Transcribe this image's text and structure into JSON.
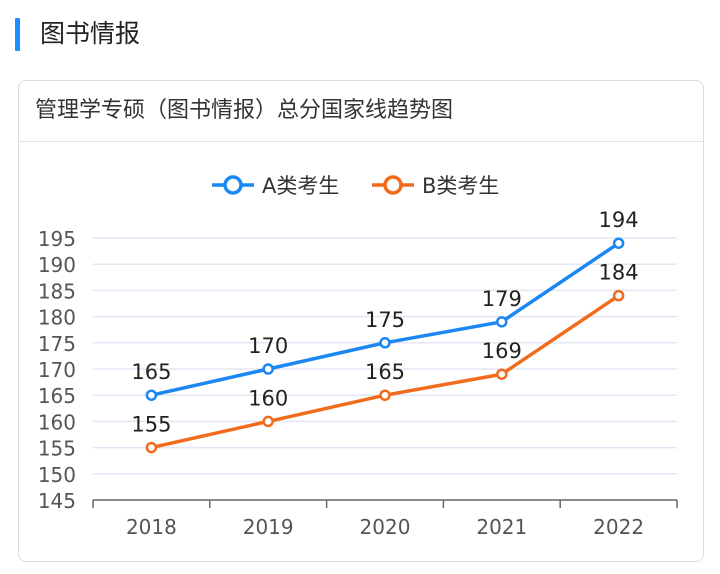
{
  "section": {
    "title": "图书情报"
  },
  "card": {
    "title": "管理学专硕（图书情报）总分国家线趋势图"
  },
  "colors": {
    "accent": "#1890ff",
    "seriesA": "#1a87f3",
    "seriesB": "#f26b1d"
  },
  "chart_data": {
    "type": "line",
    "title": "",
    "xlabel": "",
    "ylabel": "",
    "categories": [
      "2018",
      "2019",
      "2020",
      "2021",
      "2022"
    ],
    "series": [
      {
        "name": "A类考生",
        "values": [
          165,
          170,
          175,
          179,
          194
        ],
        "color": "#1a87f3"
      },
      {
        "name": "B类考生",
        "values": [
          155,
          160,
          165,
          169,
          184
        ],
        "color": "#f26b1d"
      }
    ],
    "ylim": [
      145,
      195
    ],
    "yticks": [
      "145",
      "150",
      "155",
      "160",
      "165",
      "170",
      "175",
      "180",
      "185",
      "190",
      "195"
    ],
    "grid": true,
    "legend_position": "top-center",
    "data_labels": true
  }
}
